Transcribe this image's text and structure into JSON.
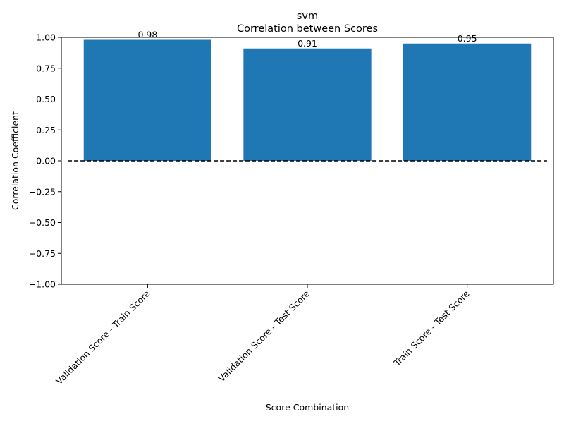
{
  "chart_data": {
    "type": "bar",
    "title": "svm",
    "subtitle": "Correlation between Scores",
    "xlabel": "Score Combination",
    "ylabel": "Correlation Coefficient",
    "categories": [
      "Validation Score - Train Score",
      "Validation Score - Test Score",
      "Train Score - Test Score"
    ],
    "values": [
      0.98,
      0.91,
      0.95
    ],
    "data_labels": [
      "0.98",
      "0.91",
      "0.95"
    ],
    "ylim": [
      -1.0,
      1.0
    ],
    "yticks": [
      -1.0,
      -0.75,
      -0.5,
      -0.25,
      0.0,
      0.25,
      0.5,
      0.75,
      1.0
    ],
    "ytick_labels": [
      "−1.00",
      "−0.75",
      "−0.50",
      "−0.25",
      "0.00",
      "0.25",
      "0.50",
      "0.75",
      "1.00"
    ],
    "reference_line": {
      "y": 0.0,
      "style": "dashed",
      "color": "#000000"
    },
    "bar_color": "#1f77b4",
    "grid": false,
    "legend": "none"
  }
}
